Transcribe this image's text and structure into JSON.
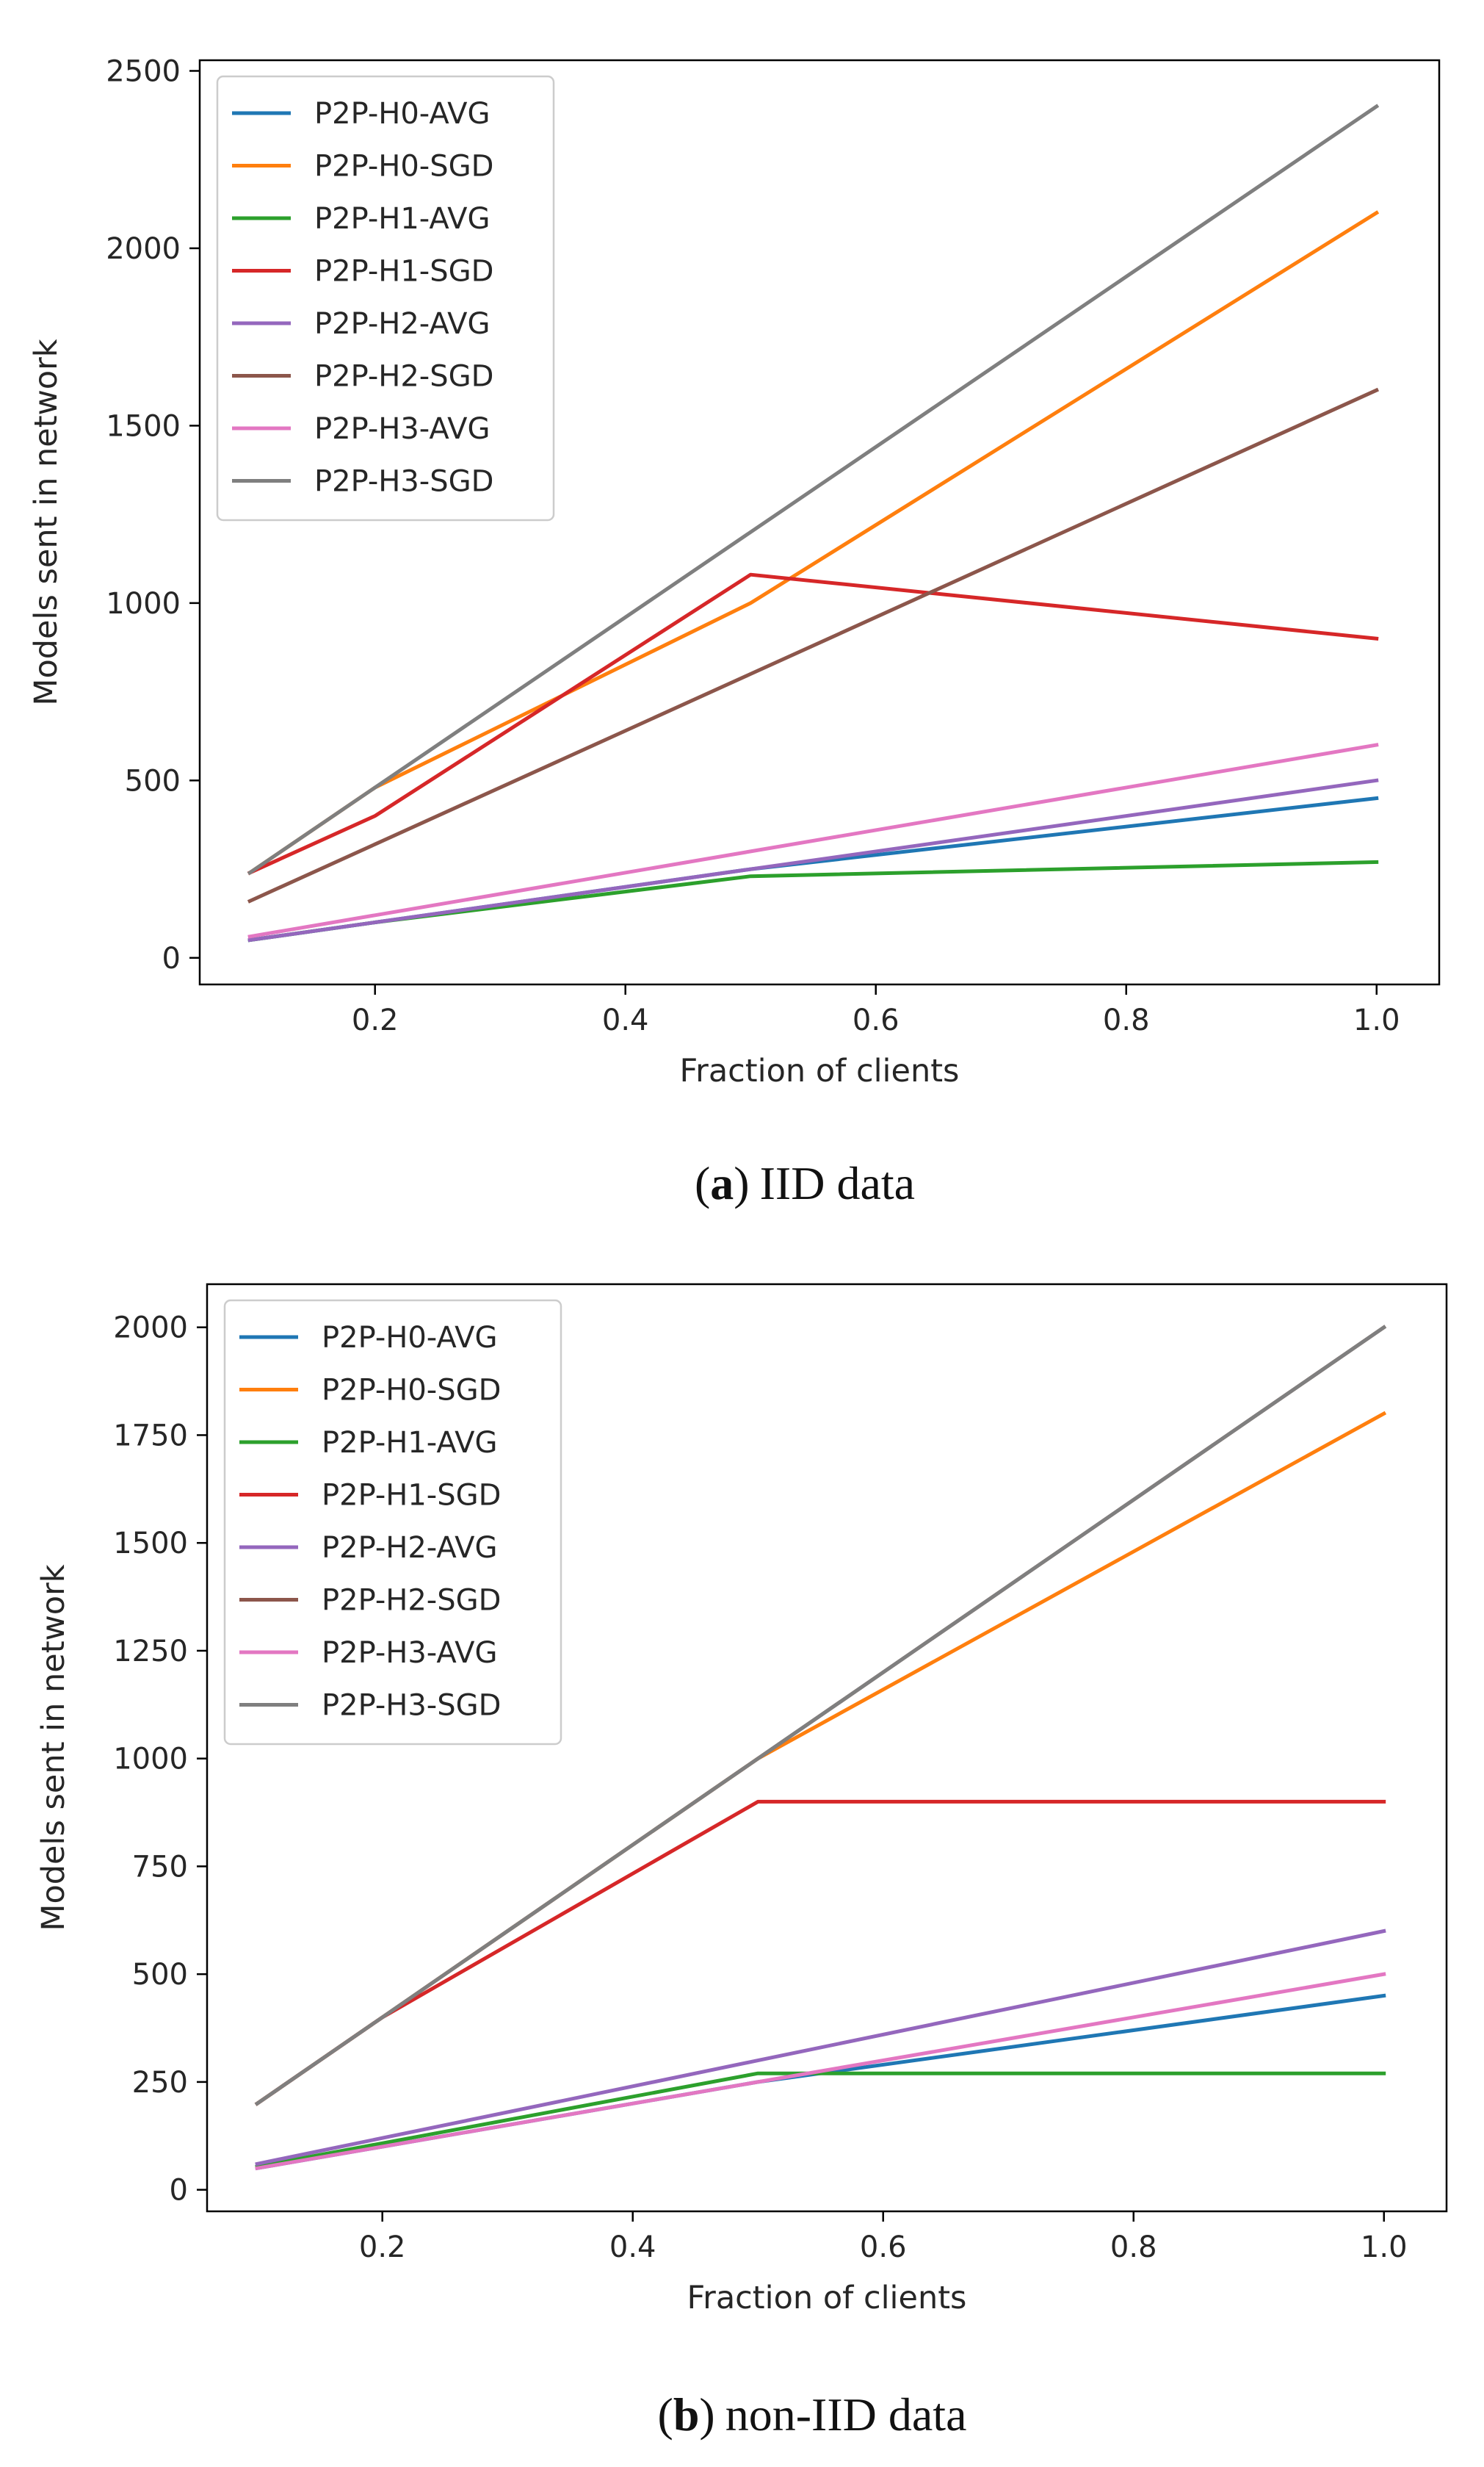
{
  "chart_data": [
    {
      "type": "line",
      "caption": {
        "letter": "a",
        "text": "IID data"
      },
      "xlabel": "Fraction of clients",
      "ylabel": "Models sent in network",
      "xlim": [
        0.06,
        1.05
      ],
      "ylim": [
        -75,
        2530
      ],
      "xticks": [
        0.2,
        0.4,
        0.6,
        0.8,
        1.0
      ],
      "xtick_labels": [
        "0.2",
        "0.4",
        "0.6",
        "0.8",
        "1.0"
      ],
      "yticks": [
        0,
        500,
        1000,
        1500,
        2000,
        2500
      ],
      "ytick_labels": [
        "0",
        "500",
        "1000",
        "1500",
        "2000",
        "2500"
      ],
      "grid": false,
      "legend_position": "top-left",
      "series": [
        {
          "name": "P2P-H0-AVG",
          "color": "#1f77b4",
          "x": [
            0.1,
            0.2,
            0.5,
            1.0
          ],
          "y": [
            50,
            100,
            250,
            450
          ]
        },
        {
          "name": "P2P-H0-SGD",
          "color": "#ff7f0e",
          "x": [
            0.1,
            0.2,
            0.5,
            1.0
          ],
          "y": [
            240,
            480,
            1000,
            2100
          ]
        },
        {
          "name": "P2P-H1-AVG",
          "color": "#2ca02c",
          "x": [
            0.1,
            0.2,
            0.5,
            1.0
          ],
          "y": [
            50,
            100,
            230,
            270
          ]
        },
        {
          "name": "P2P-H1-SGD",
          "color": "#d62728",
          "x": [
            0.1,
            0.2,
            0.5,
            1.0
          ],
          "y": [
            240,
            400,
            1080,
            900
          ]
        },
        {
          "name": "P2P-H2-AVG",
          "color": "#9467bd",
          "x": [
            0.1,
            0.2,
            0.5,
            1.0
          ],
          "y": [
            50,
            100,
            250,
            500
          ]
        },
        {
          "name": "P2P-H2-SGD",
          "color": "#8c564b",
          "x": [
            0.1,
            0.2,
            0.5,
            1.0
          ],
          "y": [
            160,
            320,
            800,
            1600
          ]
        },
        {
          "name": "P2P-H3-AVG",
          "color": "#e377c2",
          "x": [
            0.1,
            0.2,
            0.5,
            1.0
          ],
          "y": [
            60,
            120,
            300,
            600
          ]
        },
        {
          "name": "P2P-H3-SGD",
          "color": "#7f7f7f",
          "x": [
            0.1,
            0.2,
            0.5,
            1.0
          ],
          "y": [
            240,
            480,
            1200,
            2400
          ]
        }
      ]
    },
    {
      "type": "line",
      "caption": {
        "letter": "b",
        "text": "non-IID data"
      },
      "xlabel": "Fraction of clients",
      "ylabel": "Models sent in network",
      "xlim": [
        0.06,
        1.05
      ],
      "ylim": [
        -50,
        2100
      ],
      "xticks": [
        0.2,
        0.4,
        0.6,
        0.8,
        1.0
      ],
      "xtick_labels": [
        "0.2",
        "0.4",
        "0.6",
        "0.8",
        "1.0"
      ],
      "yticks": [
        0,
        250,
        500,
        750,
        1000,
        1250,
        1500,
        1750,
        2000
      ],
      "ytick_labels": [
        "0",
        "250",
        "500",
        "750",
        "1000",
        "1250",
        "1500",
        "1750",
        "2000"
      ],
      "grid": false,
      "legend_position": "top-left",
      "series": [
        {
          "name": "P2P-H0-AVG",
          "color": "#1f77b4",
          "x": [
            0.1,
            0.2,
            0.5,
            1.0
          ],
          "y": [
            50,
            100,
            250,
            450
          ]
        },
        {
          "name": "P2P-H0-SGD",
          "color": "#ff7f0e",
          "x": [
            0.1,
            0.2,
            0.5,
            1.0
          ],
          "y": [
            200,
            400,
            1000,
            1800
          ]
        },
        {
          "name": "P2P-H1-AVG",
          "color": "#2ca02c",
          "x": [
            0.1,
            0.2,
            0.5,
            1.0
          ],
          "y": [
            54,
            108,
            270,
            270
          ]
        },
        {
          "name": "P2P-H1-SGD",
          "color": "#d62728",
          "x": [
            0.1,
            0.2,
            0.5,
            1.0
          ],
          "y": [
            200,
            400,
            900,
            900
          ]
        },
        {
          "name": "P2P-H2-AVG",
          "color": "#9467bd",
          "x": [
            0.1,
            0.2,
            0.5,
            1.0
          ],
          "y": [
            60,
            120,
            300,
            600
          ]
        },
        {
          "name": "P2P-H2-SGD",
          "color": "#8c564b",
          "x": [
            0.1,
            0.2,
            0.5,
            1.0
          ],
          "y": [
            200,
            400,
            1000,
            2000
          ]
        },
        {
          "name": "P2P-H3-AVG",
          "color": "#e377c2",
          "x": [
            0.1,
            0.2,
            0.5,
            1.0
          ],
          "y": [
            50,
            100,
            250,
            500
          ]
        },
        {
          "name": "P2P-H3-SGD",
          "color": "#7f7f7f",
          "x": [
            0.1,
            0.2,
            0.5,
            1.0
          ],
          "y": [
            200,
            400,
            1000,
            2000
          ]
        }
      ]
    }
  ]
}
